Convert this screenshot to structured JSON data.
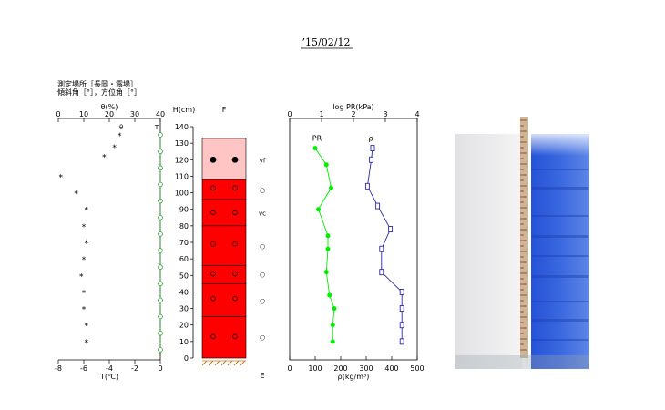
{
  "title": "’15/02/12",
  "site_label": "測定場所［長岡・露場］",
  "angle_label": "傾斜角［°］，方位角［°］",
  "chart_data": [
    {
      "type": "scatter",
      "name": "temperature-moisture",
      "top_axis": {
        "label": "θ(%)",
        "ticks": [
          0,
          10,
          20,
          30,
          40
        ],
        "lim": [
          0,
          40
        ]
      },
      "bottom_axis": {
        "label": "T(℃)",
        "ticks": [
          -8,
          -6,
          -4,
          -2,
          0
        ],
        "lim": [
          -8,
          0
        ]
      },
      "ylim": [
        0,
        140
      ],
      "series_labels": {
        "theta": "θ",
        "temperature": "T"
      },
      "temperature": {
        "unit": "℃",
        "h": [
          135,
          125,
          115,
          105,
          95,
          85,
          75,
          65,
          55,
          45,
          35,
          25,
          15,
          5
        ],
        "values": [
          0,
          0,
          0,
          0,
          0,
          0,
          0,
          0,
          0,
          0,
          0,
          0,
          0,
          0
        ]
      },
      "theta": {
        "unit": "%",
        "h": [
          135,
          128,
          122,
          110,
          100,
          90,
          80,
          70,
          60,
          50,
          40,
          30,
          20,
          10
        ],
        "values": [
          24,
          22,
          18,
          1,
          7,
          11,
          10,
          11,
          10,
          9,
          10,
          10,
          11,
          11
        ]
      }
    },
    {
      "type": "stratigraphy",
      "name": "snow-layers",
      "y_axis": {
        "label": "H(cm)",
        "ticks": [
          0,
          10,
          20,
          30,
          40,
          50,
          60,
          70,
          80,
          90,
          100,
          110,
          120,
          130,
          140
        ],
        "lim": [
          0,
          140
        ]
      },
      "header": "F",
      "footer": "E",
      "snow_surface_h": 133,
      "layers": [
        {
          "top": 133,
          "bottom": 108,
          "color": "#ffc4c4",
          "grain": "solid"
        },
        {
          "top": 108,
          "bottom": 96,
          "color": "#ff0000",
          "grain": "open"
        },
        {
          "top": 96,
          "bottom": 80,
          "color": "#ff0000",
          "grain": "open"
        },
        {
          "top": 80,
          "bottom": 56,
          "color": "#ff0000",
          "grain": "open"
        },
        {
          "top": 56,
          "bottom": 45,
          "color": "#ff0000",
          "grain": "open"
        },
        {
          "top": 45,
          "bottom": 25,
          "color": "#ff0000",
          "grain": "open"
        },
        {
          "top": 25,
          "bottom": 0,
          "color": "#ff0000",
          "grain": "open"
        }
      ],
      "grain_markers_h": [
        120,
        103,
        88,
        69,
        51,
        36,
        13
      ],
      "hardness": [
        {
          "h": 120,
          "label": "vf"
        },
        {
          "h": 102,
          "label": "○"
        },
        {
          "h": 88,
          "label": "vc"
        },
        {
          "h": 68,
          "label": "○"
        },
        {
          "h": 51,
          "label": "○"
        },
        {
          "h": 35,
          "label": "○"
        },
        {
          "h": 13,
          "label": "○"
        }
      ]
    },
    {
      "type": "line",
      "name": "density-resistance",
      "top_axis": {
        "label": "log PR(kPa)",
        "ticks": [
          0,
          1,
          2,
          3,
          4
        ],
        "lim": [
          0,
          4
        ]
      },
      "bottom_axis": {
        "label": "ρ(kg/m³)",
        "ticks": [
          0,
          100,
          200,
          300,
          400,
          500
        ],
        "lim": [
          0,
          500
        ]
      },
      "ylim": [
        0,
        140
      ],
      "series": [
        {
          "name": "PR",
          "color": "#00ee00",
          "axis": "top",
          "h": [
            127,
            117,
            103,
            90,
            74,
            66,
            52,
            38,
            30,
            20,
            10
          ],
          "values": [
            0.8,
            1.15,
            1.3,
            0.9,
            1.2,
            1.2,
            1.15,
            1.25,
            1.4,
            1.35,
            1.35
          ]
        },
        {
          "name": "ρ",
          "color": "#2a2aa0",
          "axis": "bottom",
          "h": [
            127,
            120,
            104,
            92,
            78,
            66,
            52,
            40,
            30,
            20,
            10
          ],
          "values": [
            325,
            320,
            305,
            345,
            395,
            360,
            360,
            440,
            440,
            440,
            440
          ]
        }
      ]
    }
  ],
  "photo": {
    "description": "snow pit photograph with measuring scale"
  }
}
